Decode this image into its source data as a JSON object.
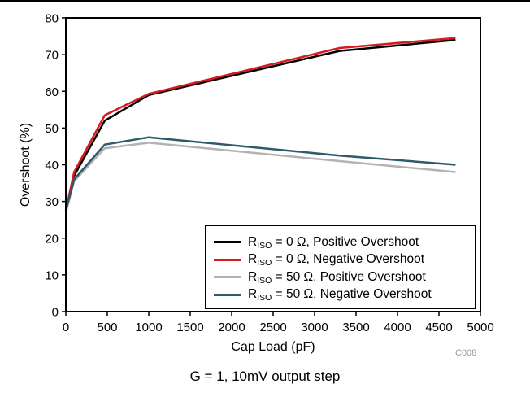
{
  "chart_data": {
    "type": "line",
    "ylabel": "Overshoot (%)",
    "xlabel": "Cap Load (pF)",
    "xlim": [
      0,
      5000
    ],
    "ylim": [
      0,
      80
    ],
    "x_ticks": [
      "0",
      "500",
      "1000",
      "1500",
      "2000",
      "2500",
      "3000",
      "3500",
      "4000",
      "4500",
      "5000"
    ],
    "y_ticks": [
      "0",
      "10",
      "20",
      "30",
      "40",
      "50",
      "60",
      "70",
      "80"
    ],
    "grid": false,
    "legend_placement": "bottom-right",
    "series": [
      {
        "name": "R_ISO = 0 Ω, Positive Overshoot",
        "legend_main": "R",
        "legend_sub": "ISO",
        "legend_rest": " = 0 Ω, Positive Overshoot",
        "color": "#000000",
        "x": [
          0,
          100,
          470,
          1000,
          3300,
          4700
        ],
        "y": [
          27,
          37,
          52,
          59,
          71,
          74
        ]
      },
      {
        "name": "R_ISO = 0 Ω, Negative Overshoot",
        "legend_main": "R",
        "legend_sub": "ISO",
        "legend_rest": " = 0 Ω, Negative Overshoot",
        "color": "#d71920",
        "x": [
          0,
          100,
          470,
          1000,
          3300,
          4700
        ],
        "y": [
          27.5,
          38,
          53.5,
          59.3,
          71.8,
          74.5
        ]
      },
      {
        "name": "R_ISO = 50 Ω, Positive Overshoot",
        "legend_main": "R",
        "legend_sub": "ISO",
        "legend_rest": " = 50 Ω, Positive Overshoot",
        "color": "#b3b3b3",
        "x": [
          0,
          100,
          470,
          1000,
          3300,
          4700
        ],
        "y": [
          27,
          35.5,
          44.5,
          46,
          41,
          38
        ]
      },
      {
        "name": "R_ISO = 50 Ω, Negative Overshoot",
        "legend_main": "R",
        "legend_sub": "ISO",
        "legend_rest": " = 50 Ω, Negative Overshoot",
        "color": "#2e5a6b",
        "x": [
          0,
          100,
          470,
          1000,
          3300,
          4700
        ],
        "y": [
          27.5,
          36,
          45.5,
          47.5,
          42.5,
          40
        ]
      }
    ]
  },
  "caption": "G = 1, 10mV output step",
  "figure_code": "C008"
}
